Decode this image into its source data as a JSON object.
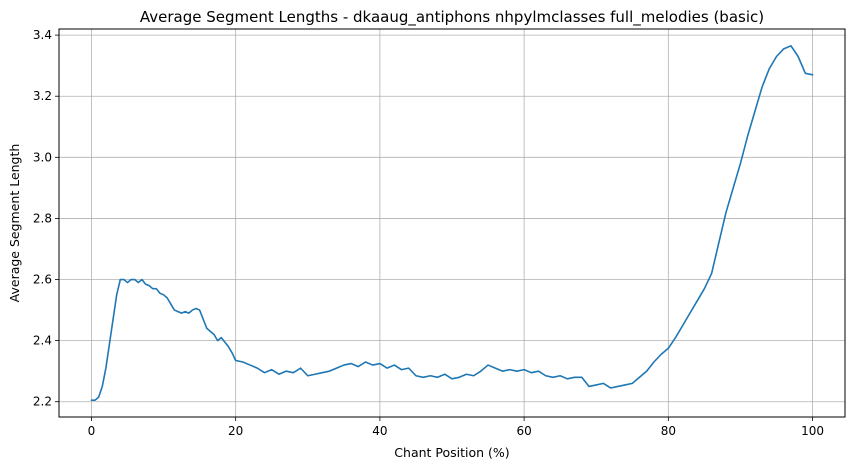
{
  "chart_data": {
    "type": "line",
    "title": "Average Segment Lengths - dkaaug_antiphons nhpylmclasses full_melodies (basic)",
    "xlabel": "Chant Position (%)",
    "ylabel": "Average Segment Length",
    "xlim": [
      -4.5,
      104.5
    ],
    "ylim": [
      2.15,
      3.42
    ],
    "xticks": [
      0,
      20,
      40,
      60,
      80,
      100
    ],
    "yticks": [
      2.2,
      2.4,
      2.6,
      2.8,
      3.0,
      3.2,
      3.4
    ],
    "xtick_labels": [
      "0",
      "20",
      "40",
      "60",
      "80",
      "100"
    ],
    "ytick_labels": [
      "2.2",
      "2.4",
      "2.6",
      "2.8",
      "3.0",
      "3.2",
      "3.4"
    ],
    "grid": true,
    "line_color": "#1f77b4",
    "series": [
      {
        "x": [
          0,
          0.5,
          1,
          1.5,
          2,
          2.5,
          3,
          3.5,
          4,
          4.5,
          5,
          5.5,
          6,
          6.5,
          7,
          7.5,
          8,
          8.5,
          9,
          9.5,
          10,
          10.5,
          11,
          11.5,
          12,
          12.5,
          13,
          13.5,
          14,
          14.5,
          15,
          15.5,
          16,
          16.5,
          17,
          17.5,
          18,
          18.5,
          19,
          19.5,
          20,
          21,
          22,
          23,
          24,
          25,
          26,
          27,
          28,
          29,
          30,
          31,
          32,
          33,
          34,
          35,
          36,
          37,
          38,
          39,
          40,
          41,
          42,
          43,
          44,
          45,
          46,
          47,
          48,
          49,
          50,
          51,
          52,
          53,
          54,
          55,
          56,
          57,
          58,
          59,
          60,
          61,
          62,
          63,
          64,
          65,
          66,
          67,
          68,
          69,
          70,
          71,
          72,
          73,
          74,
          75,
          76,
          77,
          78,
          79,
          80,
          81,
          82,
          83,
          84,
          85,
          86,
          87,
          88,
          89,
          90,
          91,
          92,
          93,
          94,
          95,
          96,
          97,
          98,
          99,
          100
        ],
        "values": [
          2.205,
          2.205,
          2.215,
          2.25,
          2.31,
          2.39,
          2.47,
          2.55,
          2.6,
          2.6,
          2.59,
          2.6,
          2.6,
          2.59,
          2.6,
          2.585,
          2.58,
          2.57,
          2.57,
          2.555,
          2.55,
          2.54,
          2.52,
          2.5,
          2.495,
          2.49,
          2.495,
          2.49,
          2.5,
          2.505,
          2.5,
          2.47,
          2.44,
          2.43,
          2.42,
          2.4,
          2.41,
          2.395,
          2.38,
          2.36,
          2.335,
          2.33,
          2.32,
          2.31,
          2.295,
          2.305,
          2.29,
          2.3,
          2.295,
          2.31,
          2.285,
          2.29,
          2.295,
          2.3,
          2.31,
          2.32,
          2.325,
          2.315,
          2.33,
          2.32,
          2.325,
          2.31,
          2.32,
          2.305,
          2.31,
          2.285,
          2.28,
          2.285,
          2.28,
          2.29,
          2.275,
          2.28,
          2.29,
          2.285,
          2.3,
          2.32,
          2.31,
          2.3,
          2.305,
          2.3,
          2.305,
          2.295,
          2.3,
          2.285,
          2.28,
          2.285,
          2.275,
          2.28,
          2.28,
          2.25,
          2.255,
          2.26,
          2.245,
          2.25,
          2.255,
          2.26,
          2.28,
          2.3,
          2.33,
          2.355,
          2.375,
          2.41,
          2.45,
          2.49,
          2.53,
          2.57,
          2.62,
          2.72,
          2.82,
          2.9,
          2.98,
          3.07,
          3.15,
          3.23,
          3.29,
          3.33,
          3.355,
          3.365,
          3.33,
          3.275,
          3.27
        ]
      }
    ]
  }
}
